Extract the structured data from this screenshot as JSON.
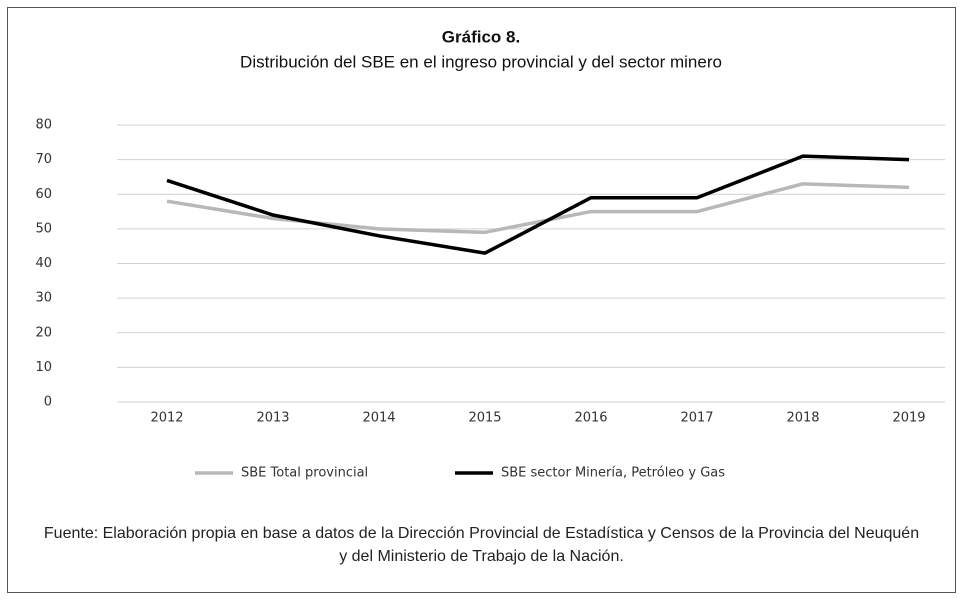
{
  "chart_data": {
    "type": "line",
    "title": "Gráfico 8.",
    "subtitle": "Distribución del SBE en el ingreso provincial y del sector minero",
    "categories": [
      "2012",
      "2013",
      "2014",
      "2015",
      "2016",
      "2017",
      "2018",
      "2019"
    ],
    "series": [
      {
        "name": "SBE Total provincial",
        "color": "#b8b8b8",
        "values": [
          58,
          53,
          50,
          49,
          55,
          55,
          63,
          62
        ]
      },
      {
        "name": "SBE sector Minería, Petróleo y Gas",
        "color": "#000000",
        "values": [
          64,
          54,
          48,
          43,
          59,
          59,
          71,
          70
        ]
      }
    ],
    "ylim": [
      0,
      80
    ],
    "yticks": [
      0,
      10,
      20,
      30,
      40,
      50,
      60,
      70,
      80
    ],
    "grid": true,
    "legend": "bottom",
    "note": "Fuente: Elaboración propia en base a datos de la Dirección Provincial de Estadística y Censos de la Provincia del Neuquén y del Ministerio de Trabajo de la Nación."
  }
}
